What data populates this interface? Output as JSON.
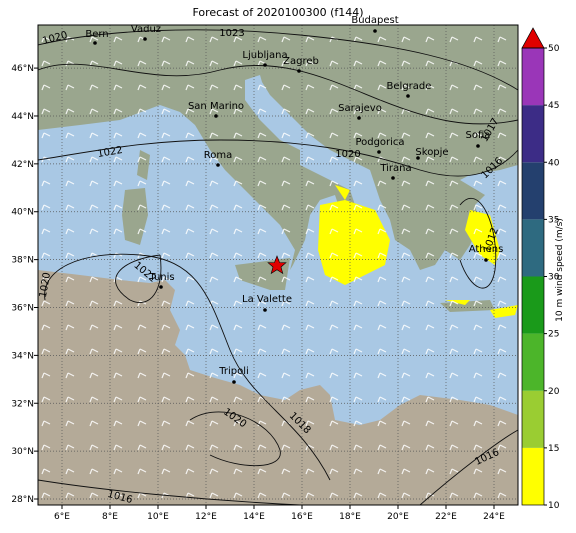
{
  "title": "Forecast of 2020100300 (f144)",
  "lon_range": [
    5,
    25
  ],
  "lat_range": [
    27.75,
    47.8
  ],
  "lon_ticks": [
    {
      "value": 6,
      "label": "6°E"
    },
    {
      "value": 8,
      "label": "8°E"
    },
    {
      "value": 10,
      "label": "10°E"
    },
    {
      "value": 12,
      "label": "12°E"
    },
    {
      "value": 14,
      "label": "14°E"
    },
    {
      "value": 16,
      "label": "16°E"
    },
    {
      "value": 18,
      "label": "18°E"
    },
    {
      "value": 20,
      "label": "20°E"
    },
    {
      "value": 22,
      "label": "22°E"
    },
    {
      "value": 24,
      "label": "24°E"
    }
  ],
  "lat_ticks": [
    {
      "value": 28,
      "label": "28°N"
    },
    {
      "value": 30,
      "label": "30°N"
    },
    {
      "value": 32,
      "label": "32°N"
    },
    {
      "value": 34,
      "label": "34°N"
    },
    {
      "value": 36,
      "label": "36°N"
    },
    {
      "value": 38,
      "label": "38°N"
    },
    {
      "value": 40,
      "label": "40°N"
    },
    {
      "value": 42,
      "label": "42°N"
    },
    {
      "value": 44,
      "label": "44°N"
    },
    {
      "value": 46,
      "label": "46°N"
    }
  ],
  "colorbar": {
    "label": "10 m wind speed (m/s)",
    "lim": [
      10,
      50
    ],
    "ticks": [
      10,
      15,
      20,
      25,
      30,
      35,
      40,
      45,
      50
    ],
    "colors": [
      "#ffff00",
      "#9acd32",
      "#4cb52a",
      "#1a9a1a",
      "#2e6a80",
      "#24406e",
      "#3c2c86",
      "#9a36b8"
    ],
    "over_color": "#e00000"
  },
  "cities": [
    "Bern",
    "Vaduz",
    "Budapest",
    "Ljubljana",
    "Zagreb",
    "Belgrade",
    "San Marino",
    "Sarajevo",
    "Roma",
    "Podgorica",
    "Skopje",
    "Sofia",
    "Tirana",
    "Tunis",
    "Athens",
    "La Valette",
    "Tripoli"
  ],
  "isobar_labels": [
    1020,
    1023,
    1022,
    1020,
    1016,
    1017,
    1012,
    1020,
    1022,
    1020,
    1018,
    1016,
    1016
  ]
}
